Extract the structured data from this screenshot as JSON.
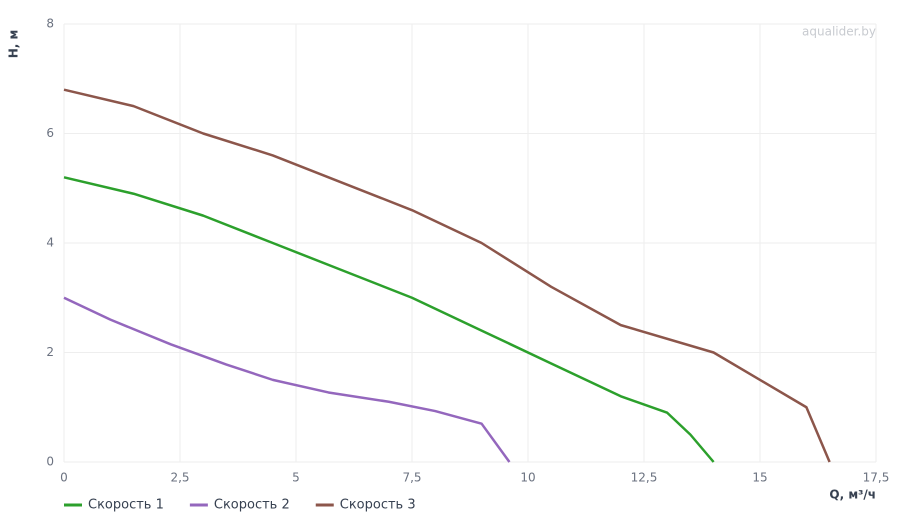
{
  "chart_data": {
    "type": "line",
    "watermark": "aqualider.by",
    "x_label": "Q, м³/ч",
    "y_label": "H, м",
    "xlim": [
      0,
      17.5
    ],
    "ylim": [
      0,
      8
    ],
    "xticks": [
      0,
      {
        "value": 2.5,
        "label": "2,5"
      },
      5,
      {
        "value": 7.5,
        "label": "7,5"
      },
      10,
      {
        "value": 12.5,
        "label": "12,5"
      },
      15,
      {
        "value": 17.5,
        "label": "17,5"
      }
    ],
    "yticks": [
      0,
      2,
      4,
      6,
      8
    ],
    "grid": true,
    "legend": "bottom-left",
    "series": [
      {
        "name": "Скорость 1",
        "color": "#2ca02c",
        "x": [
          0,
          1.5,
          3,
          4.5,
          6,
          7.5,
          9,
          10.5,
          12,
          13,
          13.5,
          14
        ],
        "values": [
          5.2,
          4.9,
          4.5,
          4.0,
          3.5,
          3.0,
          2.4,
          1.8,
          1.2,
          0.9,
          0.5,
          0
        ]
      },
      {
        "name": "Скорость 2",
        "color": "#9467bd",
        "x": [
          0,
          1,
          2.3,
          3.5,
          4.5,
          5.7,
          7,
          8,
          9,
          9.6
        ],
        "values": [
          3.0,
          2.6,
          2.15,
          1.78,
          1.5,
          1.27,
          1.1,
          0.93,
          0.7,
          0
        ]
      },
      {
        "name": "Скорость 3",
        "color": "#8c564b",
        "x": [
          0,
          1.5,
          3,
          4.5,
          6,
          7.5,
          9,
          10.5,
          12,
          14,
          16,
          16.5
        ],
        "values": [
          6.8,
          6.5,
          6.0,
          5.6,
          5.1,
          4.6,
          4.0,
          3.2,
          2.5,
          2.0,
          1.0,
          0
        ]
      }
    ]
  }
}
